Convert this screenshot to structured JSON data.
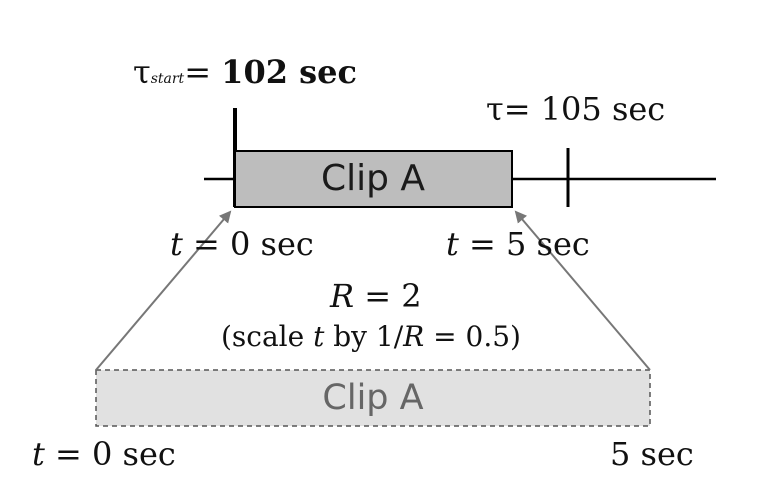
{
  "top_timeline": {
    "tau_start": {
      "symbol": "τ",
      "subscript": "start",
      "operator": "=",
      "value": "102 sec"
    },
    "tau_end": {
      "symbol": "τ",
      "operator": "=",
      "value": "105 sec"
    },
    "clip_label": "Clip A"
  },
  "mapping": {
    "t0_label_top": {
      "var": "t",
      "text": " = 0 sec"
    },
    "t5_label_top": {
      "var": "t",
      "text": " = 5 sec"
    },
    "rate": {
      "var": "R",
      "text": " = 2"
    },
    "scale_note": {
      "prefix": "(scale ",
      "t_var": "t",
      "middle": " by 1/",
      "r_var": "R",
      "suffix": " = 0.5)"
    }
  },
  "bottom_clip": {
    "clip_label": "Clip A",
    "t0_label": {
      "var": "t",
      "text": " = 0 sec"
    },
    "t5_label": "5 sec"
  },
  "colors": {
    "top_clip_fill": "#bdbdbd",
    "bottom_clip_fill": "#e1e1e1",
    "line": "#000000",
    "arrow": "#777777"
  }
}
